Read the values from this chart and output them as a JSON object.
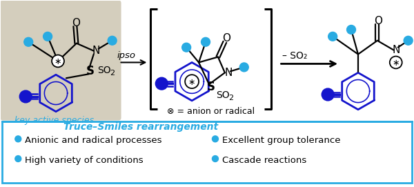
{
  "fig_width": 6.0,
  "fig_height": 2.71,
  "dpi": 100,
  "bg_color": "#ffffff",
  "cyan": "#29ABE2",
  "dark_blue": "#1414CC",
  "box_bg": "#D4CEBD",
  "bottom_box_border": "#29ABE2",
  "title_color": "#29ABE2",
  "text_color": "#000000",
  "title_text": "Truce–Smiles rearrangement",
  "bullets": [
    [
      "Anionic and radical processes",
      "Excellent group tolerance"
    ],
    [
      "High variety of conditions",
      "Cascade reactions"
    ]
  ],
  "ipso_label": "ipso",
  "minus_so2": "– SO₂",
  "anion_label": "⊗ = anion or radical",
  "key_label": "key active species"
}
